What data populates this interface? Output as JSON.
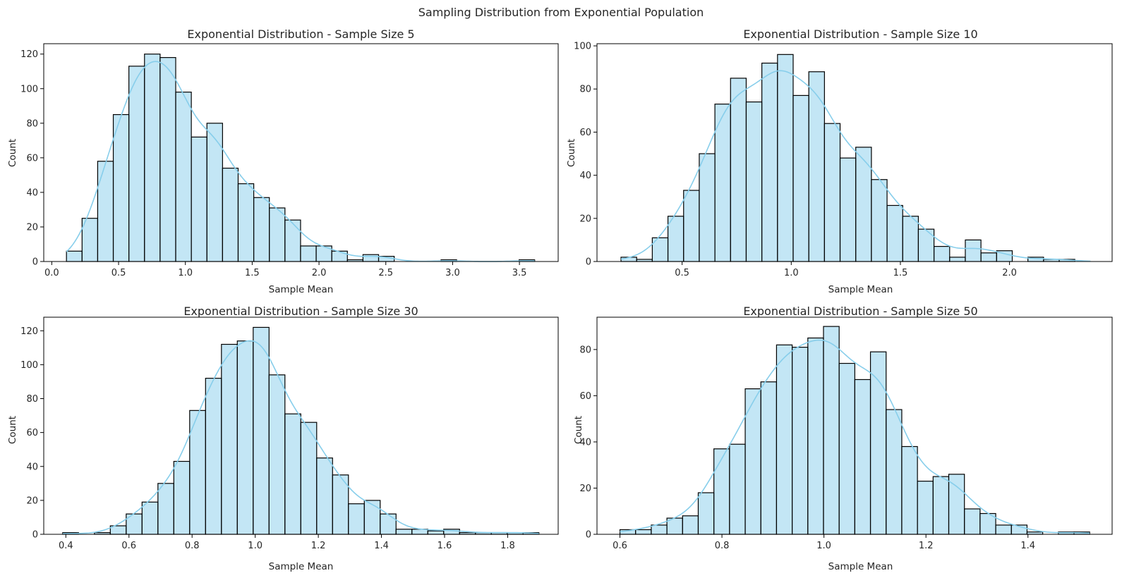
{
  "figure_title": "Sampling Distribution from Exponential Population",
  "chart_data": [
    {
      "type": "bar",
      "subtype": "histogram",
      "title": "Exponential Distribution - Sample Size 5",
      "xlabel": "Sample Mean",
      "ylabel": "Count",
      "bin_start": 0.11,
      "bin_width": 0.1168,
      "counts": [
        6,
        25,
        58,
        85,
        113,
        120,
        118,
        98,
        72,
        80,
        54,
        45,
        37,
        31,
        24,
        9,
        9,
        6,
        1,
        4,
        3,
        0,
        0,
        0,
        1,
        0,
        0,
        0,
        0,
        1
      ],
      "xlim": [
        -0.06,
        3.79
      ],
      "ylim": [
        0,
        126
      ],
      "xticks": [
        0.0,
        0.5,
        1.0,
        1.5,
        2.0,
        2.5,
        3.0,
        3.5
      ],
      "xtick_labels": [
        "0.0",
        "0.5",
        "1.0",
        "1.5",
        "2.0",
        "2.5",
        "3.0",
        "3.5"
      ],
      "yticks": [
        0,
        20,
        40,
        60,
        80,
        100,
        120
      ],
      "ytick_labels": [
        "0",
        "20",
        "40",
        "60",
        "80",
        "100",
        "120"
      ],
      "color": "#87ceeb",
      "kde": true,
      "grid": false
    },
    {
      "type": "bar",
      "subtype": "histogram",
      "title": "Exponential Distribution - Sample Size 10",
      "xlabel": "Sample Mean",
      "ylabel": "Count",
      "bin_start": 0.22,
      "bin_width": 0.0717,
      "counts": [
        2,
        1,
        11,
        21,
        33,
        50,
        73,
        85,
        74,
        92,
        96,
        77,
        88,
        64,
        48,
        53,
        38,
        26,
        21,
        15,
        7,
        2,
        10,
        4,
        5,
        0,
        2,
        1,
        1,
        0
      ],
      "xlim": [
        0.11,
        2.47
      ],
      "ylim": [
        0,
        101
      ],
      "xticks": [
        0.5,
        1.0,
        1.5,
        2.0
      ],
      "xtick_labels": [
        "0.5",
        "1.0",
        "1.5",
        "2.0"
      ],
      "yticks": [
        0,
        20,
        40,
        60,
        80,
        100
      ],
      "ytick_labels": [
        "0",
        "20",
        "40",
        "60",
        "80",
        "100"
      ],
      "color": "#87ceeb",
      "kde": true,
      "grid": false
    },
    {
      "type": "bar",
      "subtype": "histogram",
      "title": "Exponential Distribution - Sample Size 30",
      "xlabel": "Sample Mean",
      "ylabel": "Count",
      "bin_start": 0.39,
      "bin_width": 0.0503,
      "counts": [
        1,
        0,
        1,
        5,
        12,
        19,
        30,
        43,
        73,
        92,
        112,
        114,
        122,
        94,
        71,
        66,
        45,
        35,
        18,
        20,
        12,
        3,
        3,
        2,
        3,
        1,
        1,
        1,
        1,
        1
      ],
      "xlim": [
        0.33,
        1.96
      ],
      "ylim": [
        0,
        128
      ],
      "xticks": [
        0.4,
        0.6,
        0.8,
        1.0,
        1.2,
        1.4,
        1.6,
        1.8
      ],
      "xtick_labels": [
        "0.4",
        "0.6",
        "0.8",
        "1.0",
        "1.2",
        "1.4",
        "1.6",
        "1.8"
      ],
      "yticks": [
        0,
        20,
        40,
        60,
        80,
        100,
        120
      ],
      "ytick_labels": [
        "0",
        "20",
        "40",
        "60",
        "80",
        "100",
        "120"
      ],
      "color": "#87ceeb",
      "kde": true,
      "grid": false
    },
    {
      "type": "bar",
      "subtype": "histogram",
      "title": "Exponential Distribution - Sample Size 50",
      "xlabel": "Sample Mean",
      "ylabel": "Count",
      "bin_start": 0.6,
      "bin_width": 0.0307,
      "counts": [
        2,
        2,
        4,
        7,
        8,
        18,
        37,
        39,
        63,
        66,
        82,
        81,
        85,
        90,
        74,
        67,
        79,
        54,
        38,
        23,
        25,
        26,
        11,
        9,
        4,
        4,
        1,
        0,
        1,
        1
      ],
      "xlim": [
        0.555,
        1.565
      ],
      "ylim": [
        0,
        94
      ],
      "xticks": [
        0.6,
        0.8,
        1.0,
        1.2,
        1.4
      ],
      "xtick_labels": [
        "0.6",
        "0.8",
        "1.0",
        "1.2",
        "1.4"
      ],
      "yticks": [
        0,
        20,
        40,
        60,
        80
      ],
      "ytick_labels": [
        "0",
        "20",
        "40",
        "60",
        "80"
      ],
      "color": "#87ceeb",
      "kde": true,
      "grid": false
    }
  ]
}
